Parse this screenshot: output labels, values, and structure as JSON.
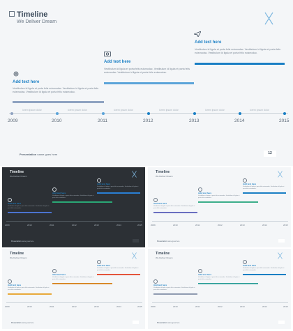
{
  "main": {
    "title": "Timeline",
    "subtitle": "We Deliver Dream",
    "events": [
      {
        "heading": "Add text here",
        "body": "Vestibulum id ligula et porta felis euismodac. Vestibulum id ligula et porta felis euismodac. Vestibulum id ligula et porta felis euismodac.",
        "icon": "gear-icon"
      },
      {
        "heading": "Add text here",
        "body": "Vestibulum id ligula et porta felis euismodac. Vestibulum id ligula et porta felis euismodac. Vestibulum id ligula et porta felis euismodac.",
        "icon": "camera-icon"
      },
      {
        "heading": "Add text here",
        "body": "Vestibulum id ligula et porta felis euismodac. Vestibulum id ligula et porta felis euismodac. Vestibulum id ligula et porta felis euismodac.",
        "icon": "paper-plane-icon"
      }
    ],
    "years": [
      "2009",
      "2010",
      "2011",
      "2012",
      "2013",
      "2014",
      "2015"
    ],
    "tick_label": "lorem ipsum dolor",
    "footer_bold": "Presentation",
    "footer_rest": "name goes here",
    "page_number": "12"
  },
  "thumbnails": [
    {
      "title": "Timeline",
      "subtitle": "We Deliver Dream",
      "heading": "Add text here",
      "body": "Vestibulum id ligula et porta felis euismodac. Vestibulum id ligula et porta felis euismodac.",
      "years": [
        "2009",
        "2010",
        "2011",
        "2012",
        "2013",
        "2014",
        "2015"
      ],
      "theme": "dark"
    },
    {
      "title": "Timeline",
      "subtitle": "We Deliver Dream",
      "heading": "Add text here",
      "body": "Vestibulum id ligula et porta felis euismodac. Vestibulum id ligula et porta felis euismodac.",
      "years": [
        "2009",
        "2010",
        "2011",
        "2012",
        "2013",
        "2014",
        "2015"
      ],
      "theme": "light"
    },
    {
      "title": "Timeline",
      "subtitle": "We Deliver Dream",
      "heading": "Add text here",
      "body": "Vestibulum id ligula et porta felis euismodac. Vestibulum id ligula et porta felis euismodac.",
      "years": [
        "2009",
        "2010",
        "2011",
        "2012",
        "2013",
        "2014",
        "2015"
      ],
      "theme": "warm"
    },
    {
      "title": "Timeline",
      "subtitle": "We Deliver Dream",
      "heading": "Add text here",
      "body": "Vestibulum id ligula et porta felis euismodac. Vestibulum id ligula et porta felis euismodac.",
      "years": [
        "2009",
        "2010",
        "2011",
        "2012",
        "2013",
        "2014",
        "2015"
      ],
      "theme": "teal"
    }
  ],
  "colors": {
    "accent_blue": "#1a7fc4",
    "bar1": "#8fa3c1",
    "bar2": "#5ba4d9",
    "bar3": "#1a7fc4",
    "dark_bg": "#2c3035",
    "logo": "#7fb8e0"
  }
}
